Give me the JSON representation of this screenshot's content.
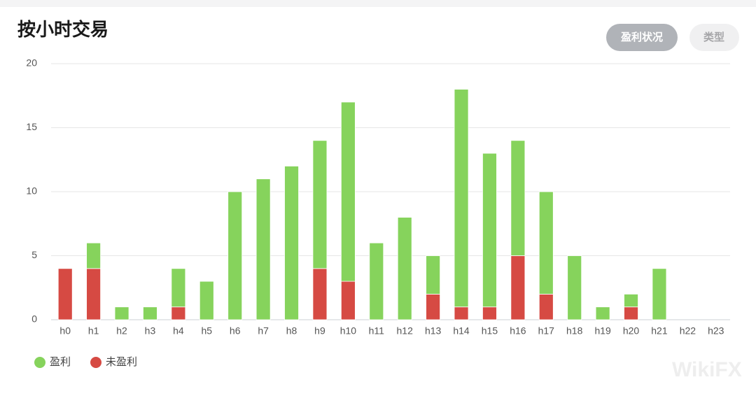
{
  "header": {
    "title": "按小时交易",
    "tabs": [
      "盈利状况",
      "类型"
    ]
  },
  "watermark": "WikiFX",
  "chart_data": {
    "type": "stacked-bar",
    "categories": [
      "h0",
      "h1",
      "h2",
      "h3",
      "h4",
      "h5",
      "h6",
      "h7",
      "h8",
      "h9",
      "h10",
      "h11",
      "h12",
      "h13",
      "h14",
      "h15",
      "h16",
      "h17",
      "h18",
      "h19",
      "h20",
      "h21",
      "h22",
      "h23"
    ],
    "series": [
      {
        "name": "盈利",
        "color": "#86d35c",
        "values": [
          0,
          2,
          1,
          1,
          3,
          3,
          10,
          11,
          12,
          10,
          14,
          6,
          8,
          3,
          17,
          12,
          9,
          8,
          5,
          1,
          1,
          4,
          0,
          0
        ]
      },
      {
        "name": "未盈利",
        "color": "#d64a43",
        "values": [
          4,
          4,
          0,
          0,
          1,
          0,
          0,
          0,
          0,
          4,
          3,
          0,
          0,
          2,
          1,
          1,
          5,
          2,
          0,
          0,
          1,
          0,
          0,
          0
        ]
      }
    ],
    "ylim": [
      0,
      20
    ],
    "yticks": [
      0,
      5,
      10,
      15,
      20
    ],
    "grid": true,
    "legend": "bottom-left"
  }
}
